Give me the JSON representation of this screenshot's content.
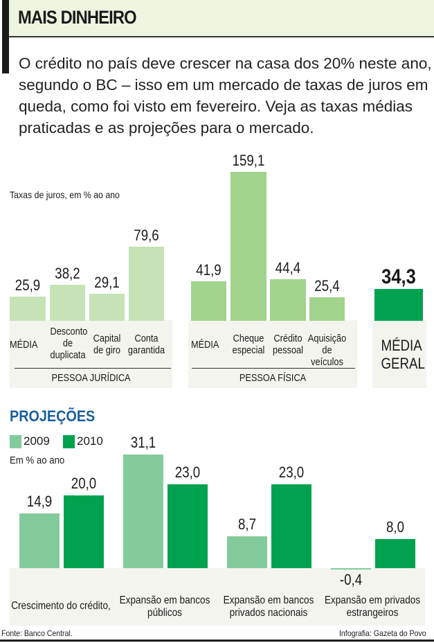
{
  "header": {
    "title": "MAIS DINHEIRO",
    "intro": "O crédito no país deve crescer na casa dos 20% neste ano, segundo o BC – isso em um mercado de taxas de juros em queda, como foi visto em fevereiro. Veja as taxas médias praticadas e as projeções para o mercado."
  },
  "colors": {
    "pj": "#c5e3b6",
    "pf": "#a2d38c",
    "media_geral": "#00a24f",
    "y2009": "#84cb9b",
    "y2010": "#00a24f",
    "projections_title": "#1a5fa0"
  },
  "chart_data": [
    {
      "type": "bar",
      "ylabel": "Taxas de juros, em % ao ano",
      "groups": [
        {
          "name": "PESSOA JURÍDICA",
          "categories": [
            "MÉDIA",
            "Desconto de duplicata",
            "Capital de giro",
            "Conta garantida"
          ],
          "values": [
            25.9,
            38.2,
            29.1,
            79.6
          ],
          "labels": [
            "25,9",
            "38,2",
            "29,1",
            "79,6"
          ]
        },
        {
          "name": "PESSOA FÍSICA",
          "categories": [
            "MÉDIA",
            "Cheque especial",
            "Crédito pessoal",
            "Aquisição de veículos"
          ],
          "values": [
            41.9,
            159.1,
            44.4,
            25.4
          ],
          "labels": [
            "41,9",
            "159,1",
            "44,4",
            "25,4"
          ]
        },
        {
          "name": "",
          "categories": [
            "MÉDIA GERAL"
          ],
          "values": [
            34.3
          ],
          "labels": [
            "34,3"
          ]
        }
      ]
    },
    {
      "type": "bar",
      "title": "PROJEÇÕES",
      "ylabel": "Em % ao ano",
      "categories": [
        "Crescimento do crédito,",
        "Expansão em bancos públicos",
        "Expansão em bancos privados nacionais",
        "Expansão em privados estrangeiros"
      ],
      "series": [
        {
          "name": "2009",
          "values": [
            14.9,
            31.1,
            8.7,
            -0.4
          ],
          "labels": [
            "14,9",
            "31,1",
            "8,7",
            "-0,4"
          ]
        },
        {
          "name": "2010",
          "values": [
            20.0,
            23.0,
            23.0,
            8.0
          ],
          "labels": [
            "20,0",
            "23,0",
            "23,0",
            "8,0"
          ]
        }
      ]
    }
  ],
  "footer": {
    "source": "Fonte: Banco Central.",
    "credit": "Infografia: Gazeta do Povo"
  }
}
